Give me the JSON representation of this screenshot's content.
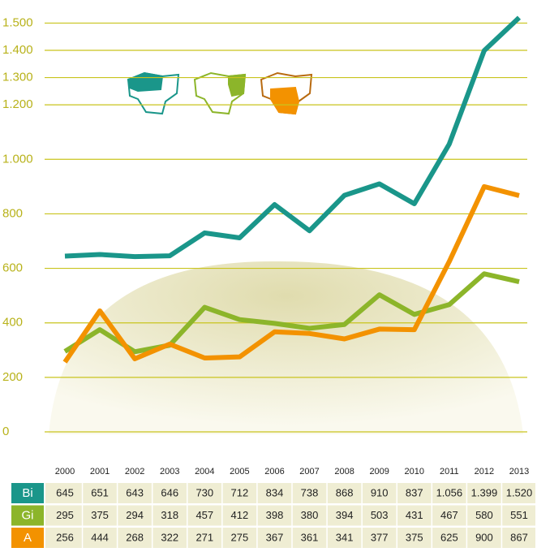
{
  "chart_data": {
    "type": "line",
    "categories": [
      "2000",
      "2001",
      "2002",
      "2003",
      "2004",
      "2005",
      "2006",
      "2007",
      "2008",
      "2009",
      "2010",
      "2011",
      "2012",
      "2013"
    ],
    "series": [
      {
        "name": "Bi",
        "color": "#1a968a",
        "values": [
          645,
          651,
          643,
          646,
          730,
          712,
          834,
          738,
          868,
          910,
          837,
          1056,
          1399,
          1520
        ],
        "value_labels": [
          "645",
          "651",
          "643",
          "646",
          "730",
          "712",
          "834",
          "738",
          "868",
          "910",
          "837",
          "1.056",
          "1.399",
          "1.520"
        ]
      },
      {
        "name": "Gi",
        "color": "#8cb52a",
        "values": [
          295,
          375,
          294,
          318,
          457,
          412,
          398,
          380,
          394,
          503,
          431,
          467,
          580,
          551
        ],
        "value_labels": [
          "295",
          "375",
          "294",
          "318",
          "457",
          "412",
          "398",
          "380",
          "394",
          "503",
          "431",
          "467",
          "580",
          "551"
        ]
      },
      {
        "name": "A",
        "color": "#f39200",
        "values": [
          256,
          444,
          268,
          322,
          271,
          275,
          367,
          361,
          341,
          377,
          375,
          625,
          900,
          867
        ],
        "value_labels": [
          "256",
          "444",
          "268",
          "322",
          "271",
          "275",
          "367",
          "361",
          "341",
          "377",
          "375",
          "625",
          "900",
          "867"
        ]
      }
    ],
    "ylim": [
      0,
      1540
    ],
    "yticks": [
      0,
      200,
      400,
      600,
      800,
      {
        "value": 1000,
        "label": "1.000"
      },
      {
        "value": 1200,
        "label": "1.200"
      },
      {
        "value": 1300,
        "label": "1.300"
      },
      {
        "value": 1400,
        "label": "1.400"
      },
      {
        "value": 1500,
        "label": "1.500"
      }
    ],
    "grid": true
  }
}
